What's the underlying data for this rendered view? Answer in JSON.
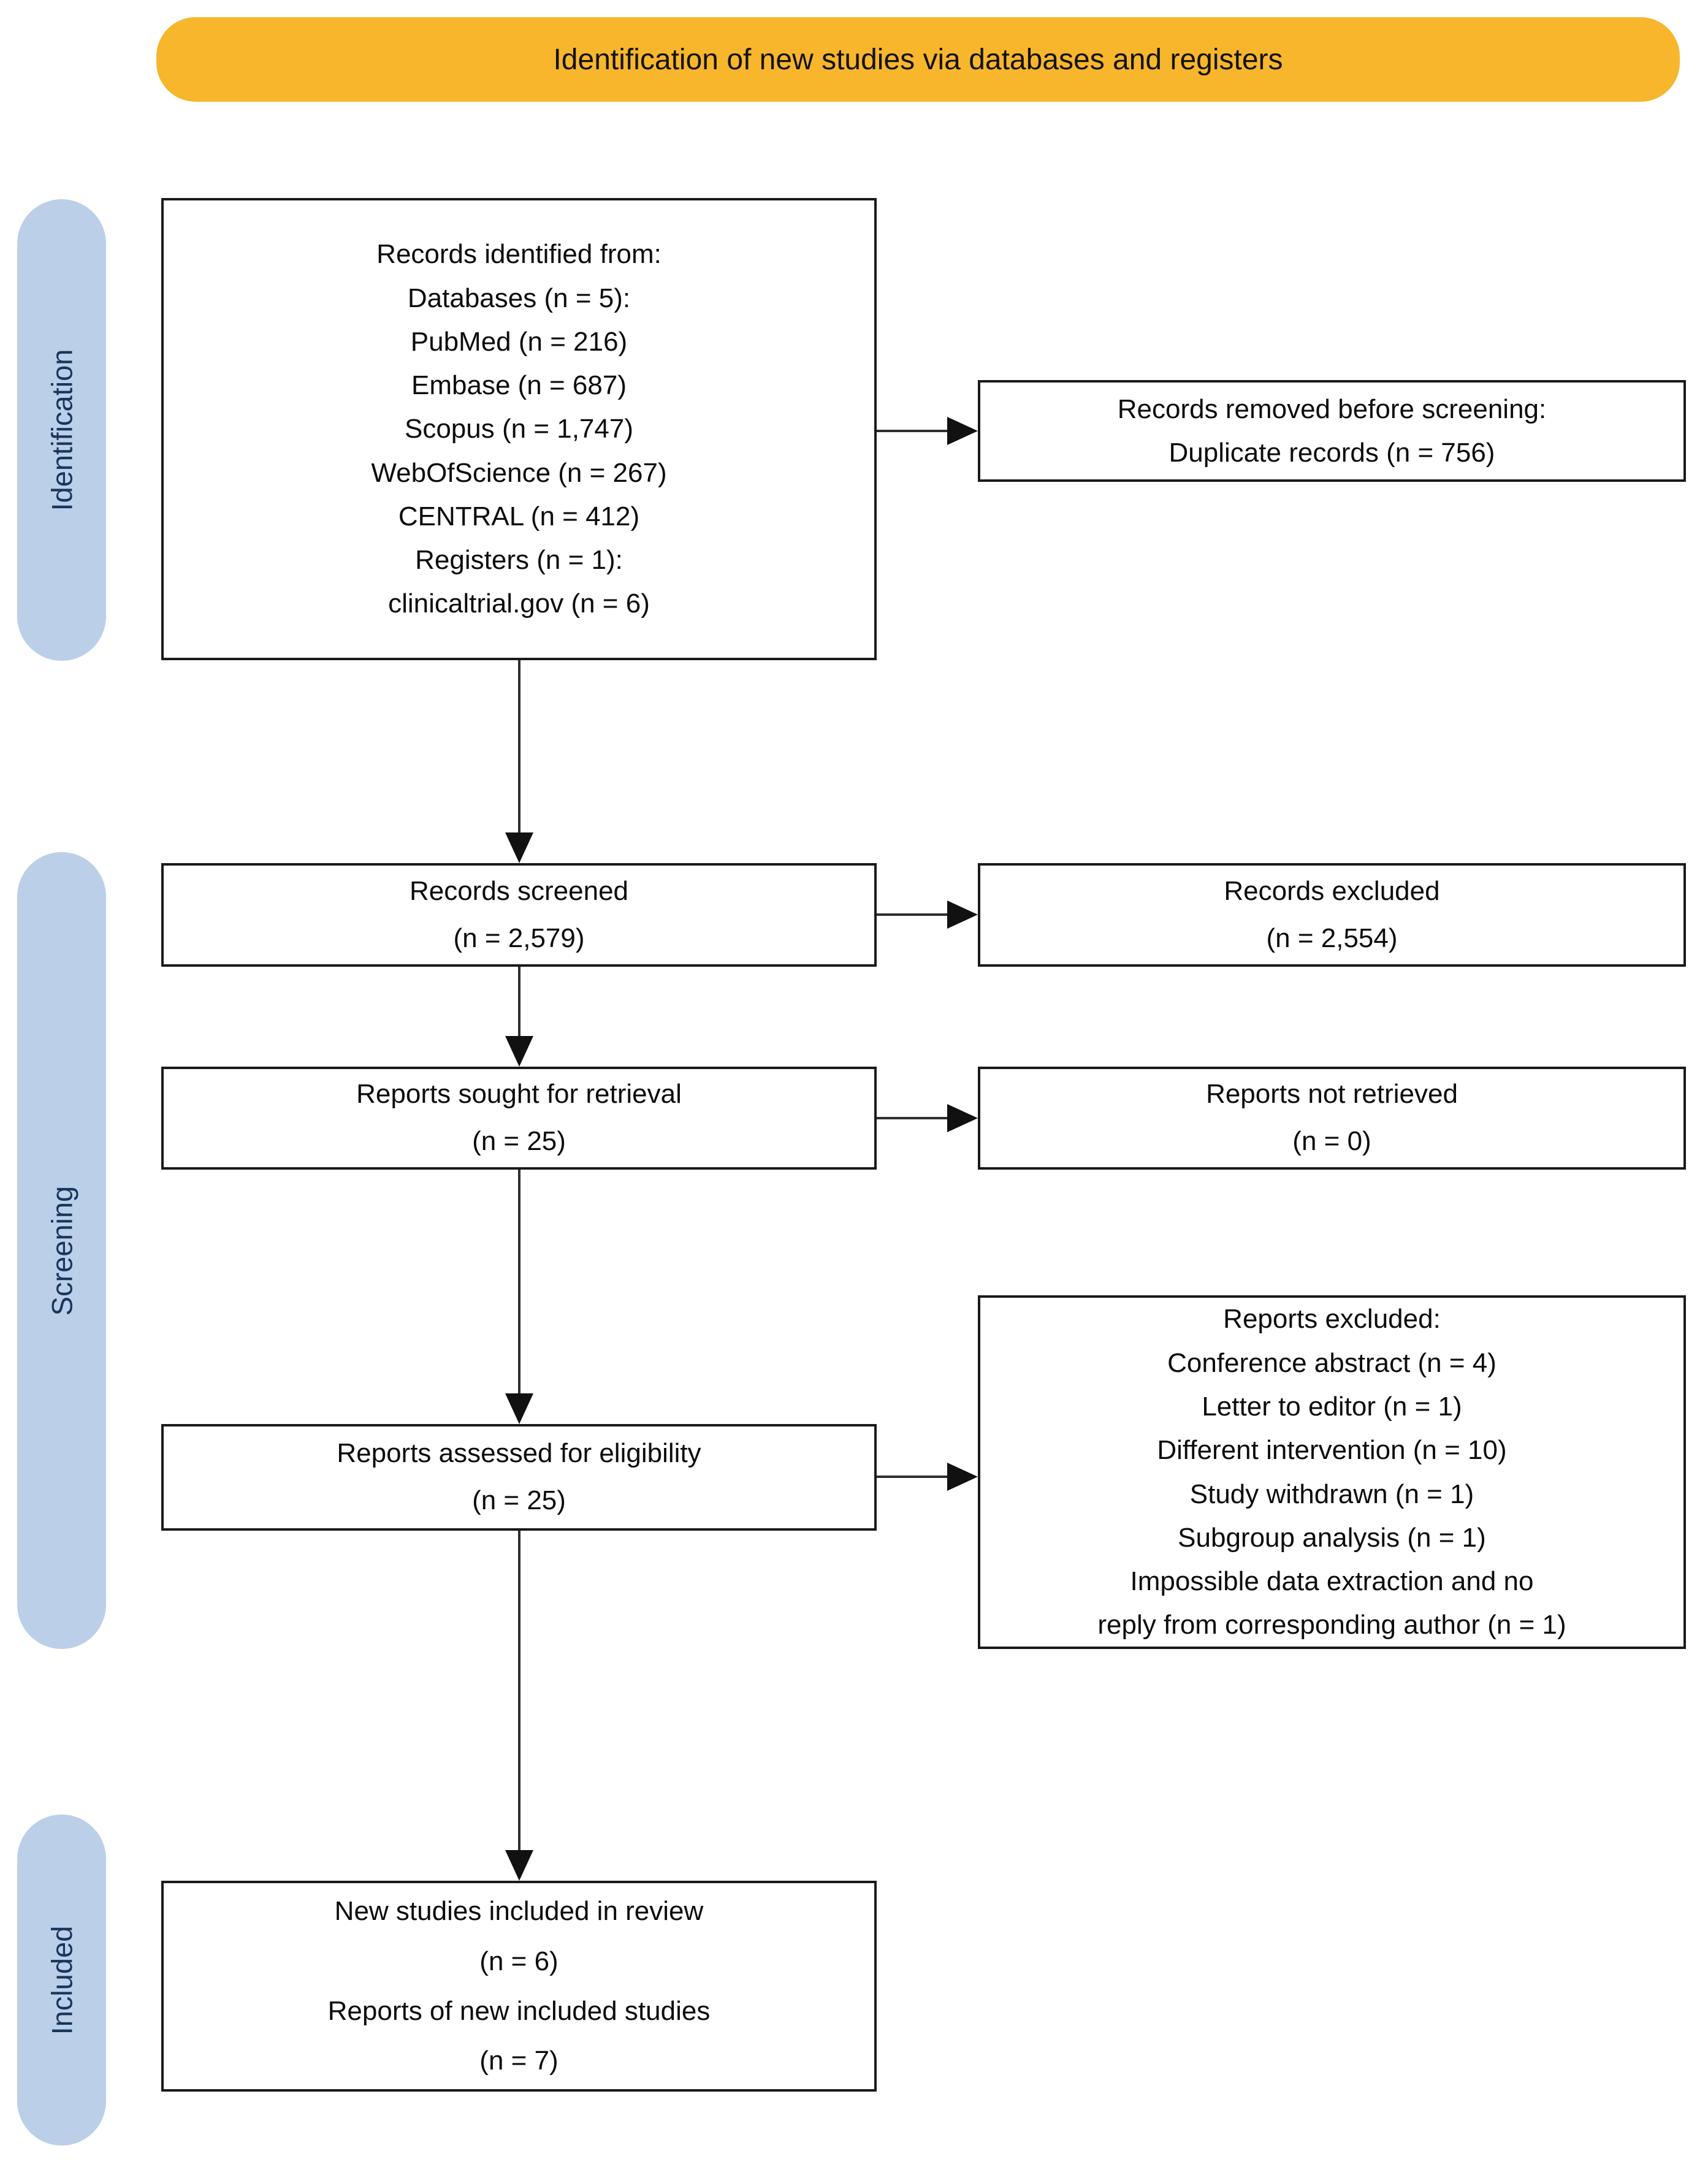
{
  "header": {
    "title": "Identification of new studies via databases and registers"
  },
  "stages": [
    {
      "label": "Identification"
    },
    {
      "label": "Screening"
    },
    {
      "label": "Included"
    }
  ],
  "boxes": {
    "records_identified": {
      "lines": [
        "Records identified from:",
        "Databases (n = 5):",
        "PubMed (n = 216)",
        "Embase (n = 687)",
        "Scopus (n = 1,747)",
        "WebOfScience (n = 267)",
        "CENTRAL (n = 412)",
        "Registers (n = 1):",
        "clinicaltrial.gov (n = 6)"
      ]
    },
    "records_removed": {
      "lines": [
        "Records removed before screening:",
        "Duplicate records (n = 756)"
      ]
    },
    "records_screened": {
      "lines": [
        "Records screened",
        "(n = 2,579)"
      ]
    },
    "records_excluded": {
      "lines": [
        "Records excluded",
        "(n = 2,554)"
      ]
    },
    "reports_sought": {
      "lines": [
        "Reports sought for retrieval",
        "(n = 25)"
      ]
    },
    "reports_not_retrieved": {
      "lines": [
        "Reports not retrieved",
        "(n = 0)"
      ]
    },
    "reports_assessed": {
      "lines": [
        "Reports assessed for eligibility",
        "(n = 25)"
      ]
    },
    "reports_excluded": {
      "lines": [
        "Reports excluded:",
        "Conference abstract (n = 4)",
        "Letter to editor (n = 1)",
        "Different intervention (n = 10)",
        "Study withdrawn (n = 1)",
        "Subgroup analysis (n = 1)",
        "Impossible data extraction and no",
        "reply from corresponding author (n = 1)"
      ]
    },
    "new_studies": {
      "lines": [
        "New studies included in review",
        "(n = 6)",
        "Reports of new included studies",
        "(n = 7)"
      ]
    }
  },
  "colors": {
    "banner_fill": "#F8B62D",
    "stage_pill_fill": "#BCCFE8",
    "stage_pill_text": "#17365D",
    "box_border": "#1A1A1A",
    "arrow": "#111111",
    "background": "#FFFFFF"
  }
}
